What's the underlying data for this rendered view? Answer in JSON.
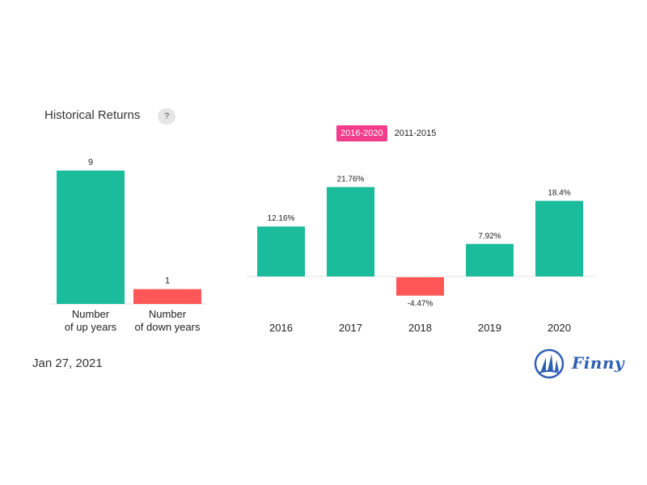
{
  "title": "Historical Returns",
  "help_label": "?",
  "tabs": [
    {
      "label": "2016-2020",
      "active": true
    },
    {
      "label": "2011-2015",
      "active": false
    }
  ],
  "date": "Jan 27, 2021",
  "brand": {
    "name": "Finny",
    "icon": "sailboat-logo-icon"
  },
  "colors": {
    "positive": "#1abc9c",
    "negative": "#ff5757",
    "accent": "#f23d8a",
    "brand": "#2f5fb3"
  },
  "chart_data": [
    {
      "type": "bar",
      "categories": [
        "Number\nof up years",
        "Number\nof down years"
      ],
      "values": [
        9,
        1
      ],
      "value_labels": [
        "9",
        "1"
      ],
      "colors": [
        "#1abc9c",
        "#ff5757"
      ],
      "ylim": [
        0,
        9
      ],
      "grid": false
    },
    {
      "type": "bar",
      "categories": [
        "2016",
        "2017",
        "2018",
        "2019",
        "2020"
      ],
      "values": [
        12.16,
        21.76,
        -4.47,
        7.92,
        18.4
      ],
      "value_labels": [
        "12.16%",
        "21.76%",
        "-4.47%",
        "7.92%",
        "18.4%"
      ],
      "ylim": [
        -4.47,
        21.76
      ],
      "grid": false
    }
  ]
}
